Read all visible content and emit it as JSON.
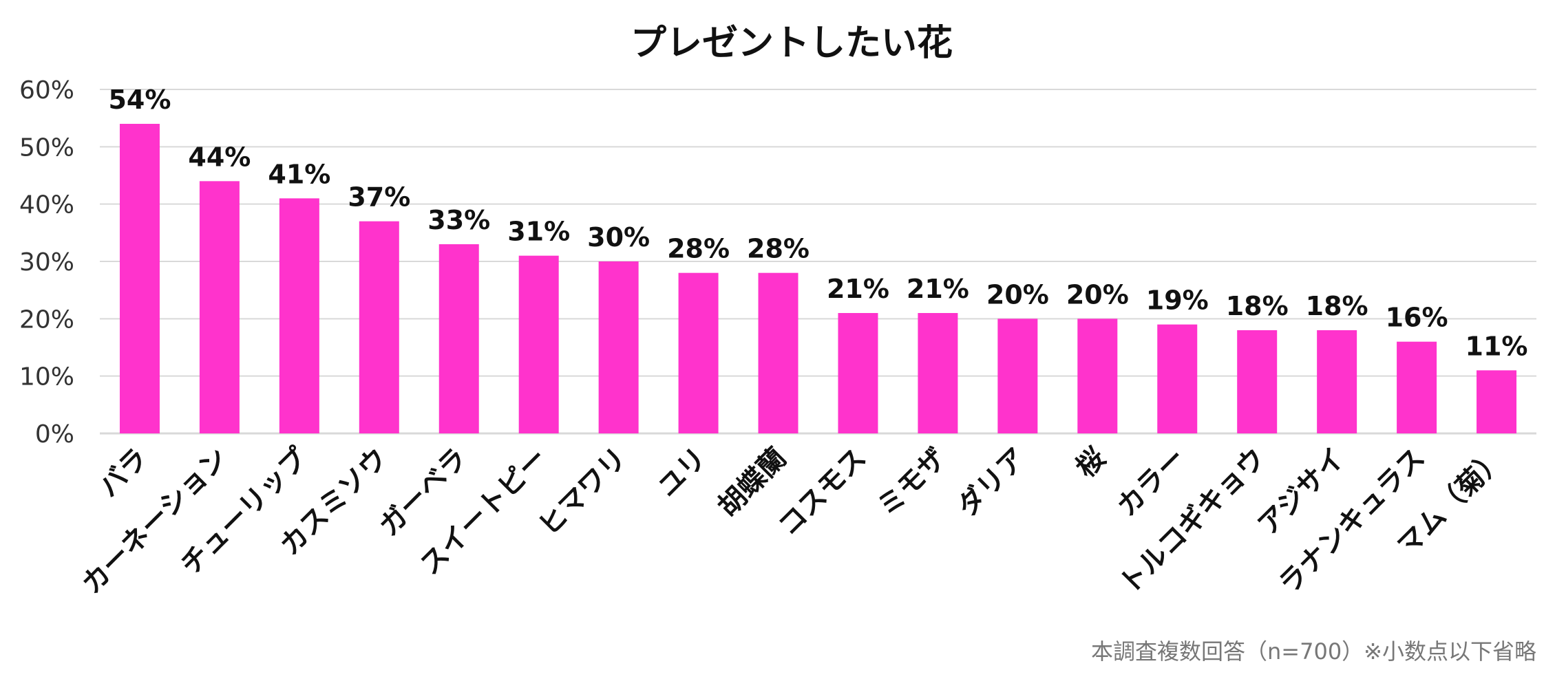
{
  "chart_data": {
    "type": "bar",
    "title": "プレゼントしたい花",
    "categories": [
      "バラ",
      "カーネーション",
      "チューリップ",
      "カスミソウ",
      "ガーベラ",
      "スイートピー",
      "ヒマワリ",
      "ユリ",
      "胡蝶蘭",
      "コスモス",
      "ミモザ",
      "ダリア",
      "桜",
      "カラー",
      "トルコギキョウ",
      "アジサイ",
      "ラナンキュラス",
      "マム（菊）"
    ],
    "values": [
      54,
      44,
      41,
      37,
      33,
      31,
      30,
      28,
      28,
      21,
      21,
      20,
      20,
      19,
      18,
      18,
      16,
      11
    ],
    "data_labels": [
      "54%",
      "44%",
      "41%",
      "37%",
      "33%",
      "31%",
      "30%",
      "28%",
      "28%",
      "21%",
      "21%",
      "20%",
      "20%",
      "19%",
      "18%",
      "18%",
      "16%",
      "11%"
    ],
    "y_ticks": [
      "0%",
      "10%",
      "20%",
      "30%",
      "40%",
      "50%",
      "60%"
    ],
    "y_tick_values": [
      0,
      10,
      20,
      30,
      40,
      50,
      60
    ],
    "ylim": [
      0,
      60
    ],
    "grid": true,
    "legend": "none",
    "bar_color": "#FF33CC",
    "grid_color": "#D9D9D9",
    "footnote": "本調査複数回答（n=700）※小数点以下省略"
  }
}
